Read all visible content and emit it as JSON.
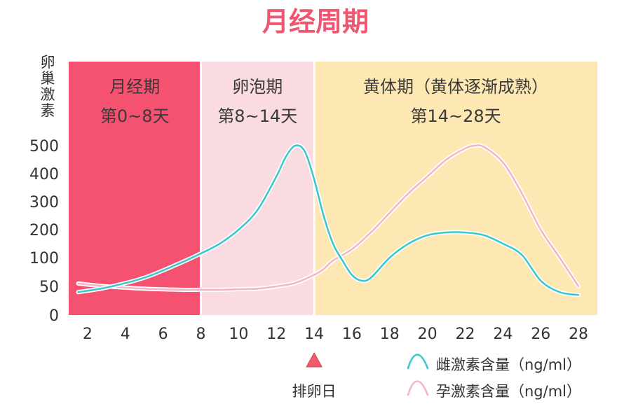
{
  "chart_data": {
    "type": "line",
    "title": "月经周期",
    "ylabel": "卵巢激素",
    "xlim": [
      1,
      29
    ],
    "x_ticks": [
      2,
      4,
      6,
      8,
      10,
      12,
      14,
      16,
      18,
      20,
      22,
      24,
      26,
      28
    ],
    "y_ticks": [
      0,
      50,
      100,
      200,
      300,
      400,
      500
    ],
    "phases": [
      {
        "name": "月经期",
        "range_label": "第0~8天",
        "start": 1,
        "end": 8,
        "color": "#f55170"
      },
      {
        "name": "卵泡期",
        "range_label": "第8~14天",
        "start": 8,
        "end": 14,
        "color": "#fadbe2"
      },
      {
        "name": "黄体期（黄体逐渐成熟）",
        "range_label": "第14~28天",
        "start": 14,
        "end": 29,
        "color": "#fde7b3"
      }
    ],
    "series": [
      {
        "name": "雌激素含量（ng/ml）",
        "color": "#3cc8cc",
        "x": [
          1.5,
          3,
          5,
          7,
          8,
          9,
          10,
          11,
          12,
          12.5,
          13,
          13.5,
          14,
          14.5,
          15,
          15.5,
          16,
          16.5,
          17,
          18,
          19,
          20,
          21,
          22,
          23,
          24,
          25,
          26,
          27,
          28
        ],
        "y": [
          40,
          48,
          65,
          92,
          115,
          150,
          200,
          270,
          390,
          460,
          500,
          480,
          380,
          250,
          150,
          95,
          70,
          60,
          65,
          100,
          150,
          180,
          190,
          190,
          180,
          150,
          110,
          60,
          40,
          35
        ]
      },
      {
        "name": "孕激素含量（ng/ml）",
        "color": "#f4b6c6",
        "x": [
          1.5,
          3,
          5,
          7,
          8,
          9,
          10,
          11,
          12,
          13,
          14,
          14.5,
          15,
          16,
          17,
          18,
          19,
          20,
          21,
          22,
          22.5,
          23,
          24,
          25,
          26,
          27,
          28
        ],
        "y": [
          55,
          50,
          46,
          44,
          44,
          44,
          45,
          46,
          50,
          56,
          70,
          80,
          95,
          130,
          190,
          260,
          330,
          390,
          450,
          490,
          500,
          495,
          440,
          330,
          200,
          100,
          50
        ]
      }
    ],
    "annotation": {
      "label": "排卵日",
      "x": 14,
      "marker_color": "#f05a6a"
    }
  }
}
